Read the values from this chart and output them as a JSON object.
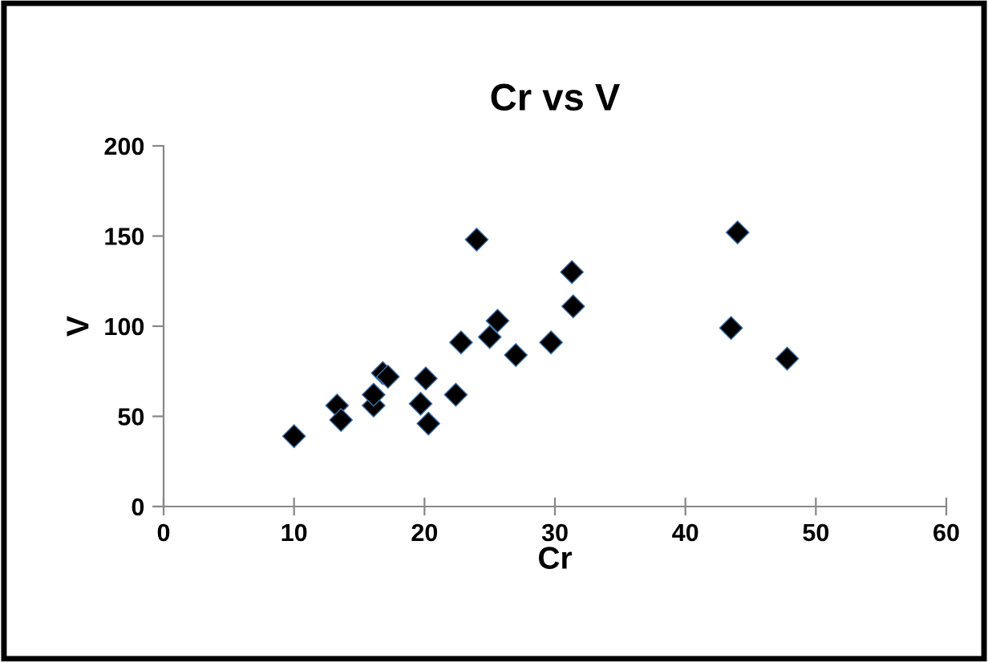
{
  "chart_data": {
    "type": "scatter",
    "title": "Cr vs V",
    "xlabel": "Cr",
    "ylabel": "V",
    "x": [
      10.0,
      13.3,
      13.6,
      16.1,
      16.1,
      16.8,
      17.2,
      19.7,
      20.1,
      20.3,
      22.4,
      22.8,
      24.0,
      25.0,
      25.6,
      27.0,
      29.7,
      31.3,
      31.4,
      44.0,
      43.5,
      47.8
    ],
    "series": [
      {
        "color": "#000000",
        "values": [
          39,
          56,
          48,
          56,
          62,
          74,
          72,
          57,
          71,
          46,
          62,
          91,
          148,
          94,
          103,
          84,
          91,
          130,
          111,
          152,
          99,
          82
        ]
      }
    ],
    "xlim": [
      0,
      60
    ],
    "xticks": [
      0,
      10,
      20,
      30,
      40,
      50,
      60
    ],
    "ylim": [
      0,
      200
    ],
    "yticks": [
      0,
      50,
      100,
      150,
      200
    ],
    "marker": "diamond",
    "grid": false,
    "legend": false
  }
}
